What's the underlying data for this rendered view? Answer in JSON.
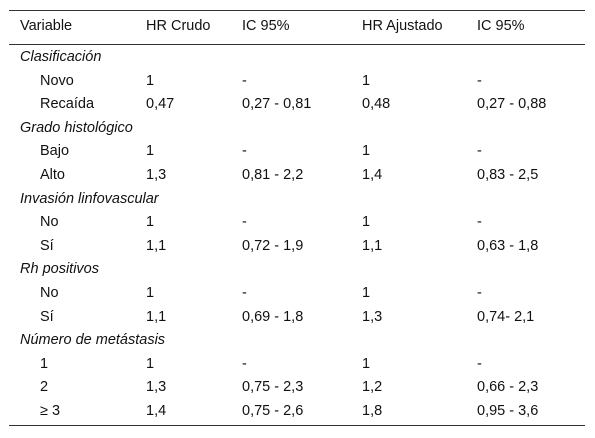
{
  "header": [
    "Variable",
    "HR Crudo",
    "IC 95%",
    "HR Ajustado",
    "IC 95%"
  ],
  "groups": [
    {
      "title": "Clasificación",
      "rows": [
        [
          "Novo",
          "1",
          "-",
          "1",
          "-"
        ],
        [
          "Recaída",
          "0,47",
          "0,27 - 0,81",
          "0,48",
          "0,27 - 0,88"
        ]
      ]
    },
    {
      "title": "Grado histológico",
      "rows": [
        [
          "Bajo",
          "1",
          "-",
          "1",
          "-"
        ],
        [
          "Alto",
          "1,3",
          "0,81 - 2,2",
          "1,4",
          "0,83 - 2,5"
        ]
      ]
    },
    {
      "title": "Invasión linfovascular",
      "rows": [
        [
          "No",
          "1",
          "-",
          "1",
          "-"
        ],
        [
          "Sí",
          "1,1",
          "0,72 - 1,9",
          "1,1",
          "0,63 - 1,8"
        ]
      ]
    },
    {
      "title": "Rh positivos",
      "rows": [
        [
          "No",
          "1",
          "-",
          "1",
          "-"
        ],
        [
          "Sí",
          "1,1",
          "0,69 - 1,8",
          "1,3",
          "0,74- 2,1"
        ]
      ]
    },
    {
      "title": "Número de metástasis",
      "rows": [
        [
          "1",
          "1",
          "-",
          "1",
          "-"
        ],
        [
          "2",
          "1,3",
          "0,75 - 2,3",
          "1,2",
          "0,66 - 2,3"
        ],
        [
          "≥ 3",
          "1,4",
          "0,75 - 2,6",
          "1,8",
          "0,95 - 3,6"
        ]
      ]
    }
  ]
}
